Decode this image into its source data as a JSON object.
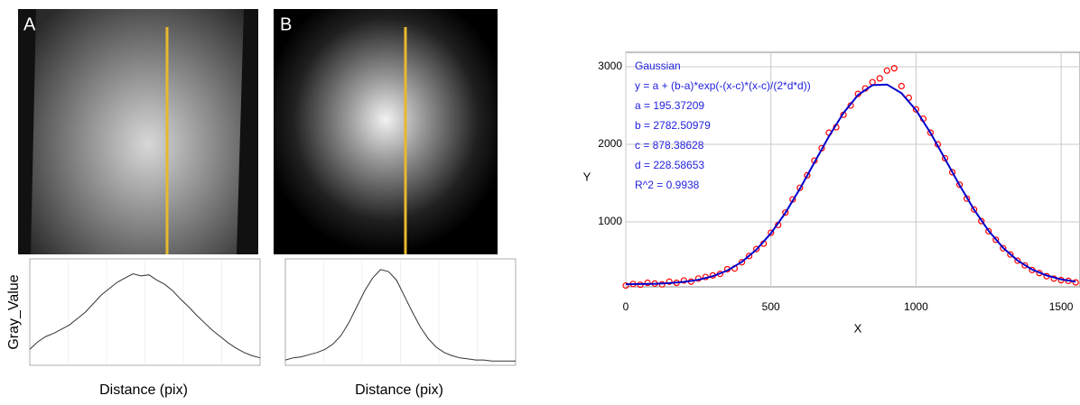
{
  "panels": [
    {
      "label": "A"
    },
    {
      "label": "B"
    }
  ],
  "chart_data": [
    {
      "type": "line",
      "ylabel": "Gray_Value",
      "xlabel": "Distance (pix)",
      "x": [
        0,
        1,
        2,
        3,
        4,
        5,
        6,
        7,
        8,
        9,
        10,
        11,
        12,
        13,
        14,
        15,
        16,
        17,
        18,
        19,
        20,
        21,
        22,
        23,
        24,
        25,
        26,
        27,
        28,
        29
      ],
      "values": [
        15,
        22,
        27,
        30,
        34,
        38,
        44,
        50,
        58,
        66,
        72,
        78,
        82,
        86,
        84,
        85,
        80,
        76,
        70,
        62,
        55,
        47,
        40,
        33,
        27,
        21,
        16,
        12,
        9,
        7
      ],
      "color": "#333333",
      "xlim": [
        0,
        29
      ],
      "ylim": [
        0,
        100
      ]
    },
    {
      "type": "line",
      "xlabel": "Distance (pix)",
      "x": [
        0,
        1,
        2,
        3,
        4,
        5,
        6,
        7,
        8,
        9,
        10,
        11,
        12,
        13,
        14,
        15,
        16,
        17,
        18,
        19,
        20,
        21,
        22,
        23,
        24,
        25,
        26,
        27,
        28,
        29
      ],
      "values": [
        5,
        7,
        8,
        10,
        12,
        15,
        20,
        28,
        40,
        55,
        70,
        82,
        90,
        88,
        80,
        65,
        50,
        36,
        25,
        17,
        12,
        9,
        7,
        6,
        5,
        5,
        4,
        4,
        4,
        4
      ],
      "color": "#333333",
      "xlim": [
        0,
        29
      ],
      "ylim": [
        0,
        100
      ]
    },
    {
      "type": "scatter",
      "xlabel": "X",
      "ylabel": "Y",
      "annotations": [
        "Gaussian",
        "y = a + (b-a)*exp(-(x-c)*(x-c)/(2*d*d))",
        "a = 195.37209",
        "b = 2782.50979",
        "c = 878.38628",
        "d = 228.58653",
        "R^2 = 0.9938"
      ],
      "xlim": [
        0,
        1565
      ],
      "ylim": [
        163,
        3186
      ],
      "xticks": [
        0,
        500,
        1000,
        1500
      ],
      "yticks": [
        1000,
        2000,
        3000
      ],
      "grid": true,
      "series": [
        {
          "style": "markers",
          "color": "#ff0000",
          "x": [
            0,
            25,
            50,
            75,
            100,
            125,
            150,
            175,
            200,
            225,
            250,
            275,
            300,
            325,
            350,
            375,
            400,
            425,
            450,
            475,
            500,
            525,
            550,
            575,
            600,
            625,
            650,
            675,
            700,
            725,
            750,
            775,
            800,
            825,
            850,
            875,
            900,
            925,
            950,
            975,
            1000,
            1025,
            1050,
            1075,
            1100,
            1125,
            1150,
            1175,
            1200,
            1225,
            1250,
            1275,
            1300,
            1325,
            1350,
            1375,
            1400,
            1425,
            1450,
            1475,
            1500,
            1525,
            1550,
            1575
          ],
          "values": [
            180,
            200,
            190,
            215,
            205,
            195,
            230,
            215,
            245,
            230,
            270,
            290,
            310,
            330,
            390,
            400,
            480,
            560,
            650,
            720,
            860,
            960,
            1120,
            1290,
            1440,
            1600,
            1790,
            1950,
            2150,
            2220,
            2380,
            2500,
            2650,
            2720,
            2800,
            2850,
            2950,
            2980,
            2750,
            2600,
            2450,
            2330,
            2150,
            2000,
            1820,
            1640,
            1480,
            1300,
            1160,
            1010,
            880,
            770,
            660,
            580,
            500,
            440,
            380,
            340,
            300,
            270,
            250,
            240,
            220,
            210
          ]
        },
        {
          "style": "line",
          "color": "#0000cc",
          "x": [
            0,
            50,
            100,
            150,
            200,
            250,
            300,
            350,
            400,
            450,
            500,
            550,
            600,
            650,
            700,
            750,
            800,
            850,
            900,
            950,
            1000,
            1050,
            1100,
            1150,
            1200,
            1250,
            1300,
            1350,
            1400,
            1450,
            1500,
            1550
          ],
          "values": [
            197,
            199,
            203,
            211,
            227,
            254,
            300,
            374,
            485,
            642,
            853,
            1117,
            1427,
            1766,
            2103,
            2405,
            2635,
            2763,
            2771,
            2659,
            2441,
            2147,
            1813,
            1473,
            1157,
            885,
            667,
            503,
            386,
            309,
            259,
            230
          ]
        }
      ]
    }
  ]
}
